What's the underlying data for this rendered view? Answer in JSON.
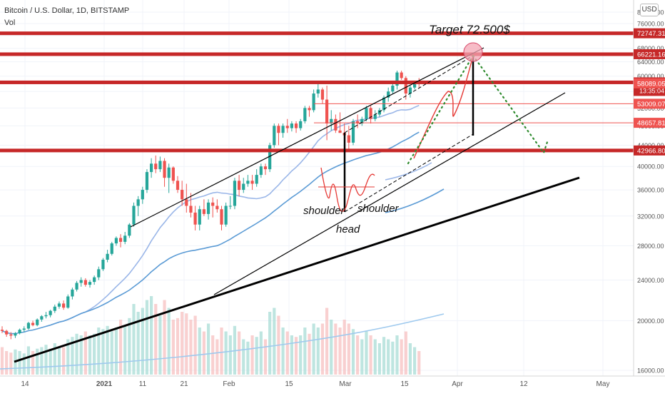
{
  "header": {
    "symbol": "Bitcoin / U.S. Dollar, 1D, BITSTAMP",
    "indicator": "Vol",
    "currency_button": "USD"
  },
  "annotations": {
    "target": "Target 72.500$",
    "left_shoulder": "shoulder",
    "right_shoulder": "shoulder",
    "head": "head"
  },
  "colors": {
    "up": "#26a69a",
    "down": "#ef5350",
    "level": "#c62828",
    "ma_short": "#9ab6e8",
    "ma_mid": "#5b9bd5",
    "ma_long": "#9ec9ee",
    "projection": "#2e8b2e",
    "target_circle": "#f4a6b4"
  },
  "chart_data": {
    "type": "candlestick",
    "symbol": "Bitcoin / U.S. Dollar",
    "interval": "1D",
    "exchange": "BITSTAMP",
    "y_scale": "log",
    "ylim": [
      16000,
      84000
    ],
    "x_ticks": [
      "14",
      "2021",
      "11",
      "21",
      "Feb",
      "15",
      "Mar",
      "15",
      "Apr",
      "12",
      "May"
    ],
    "y_ticks": [
      16000,
      20000,
      24000,
      28000,
      32000,
      36000,
      40000,
      44000,
      48000,
      52000,
      56000,
      60000,
      64000,
      68000,
      72000,
      76000,
      80000
    ],
    "price_labels": [
      {
        "text": "72747.31",
        "value": 72747.31
      },
      {
        "text": "66221.16",
        "value": 66221.16
      },
      {
        "text": "58347.97",
        "value": 58347.97,
        "sub": "13:35:04"
      },
      {
        "text": "58089.05",
        "value": 58089.05
      },
      {
        "text": "53009.07",
        "value": 53009.07
      },
      {
        "text": "48657.81",
        "value": 48657.81
      },
      {
        "text": "42966.80",
        "value": 42966.8
      }
    ],
    "horizontal_levels": [
      72747.31,
      66221.16,
      58347.97,
      42966.8
    ],
    "thin_levels": [
      53009.07,
      48657.81
    ],
    "target": 72500,
    "pattern": "head and shoulders",
    "ohlc": [
      [
        0,
        19200,
        19500,
        18900,
        19100
      ],
      [
        1,
        19100,
        19200,
        18600,
        18800
      ],
      [
        2,
        18800,
        19000,
        18400,
        18700
      ],
      [
        3,
        18700,
        19000,
        18500,
        18900
      ],
      [
        4,
        18900,
        19300,
        18800,
        19200
      ],
      [
        5,
        19200,
        19500,
        19000,
        19300
      ],
      [
        6,
        19300,
        19900,
        19200,
        19800
      ],
      [
        7,
        19800,
        20000,
        19500,
        19600
      ],
      [
        8,
        19600,
        20200,
        19500,
        20100
      ],
      [
        9,
        20100,
        20500,
        19900,
        20400
      ],
      [
        10,
        20400,
        20800,
        20200,
        20500
      ],
      [
        11,
        20500,
        21000,
        20300,
        20900
      ],
      [
        12,
        20900,
        21500,
        20700,
        21300
      ],
      [
        13,
        21300,
        21800,
        21100,
        21600
      ],
      [
        14,
        21600,
        21900,
        21000,
        21200
      ],
      [
        15,
        21200,
        22500,
        21100,
        22300
      ],
      [
        16,
        22300,
        23200,
        22000,
        23000
      ],
      [
        17,
        23000,
        23900,
        22800,
        23700
      ],
      [
        18,
        23700,
        24300,
        23300,
        24000
      ],
      [
        19,
        24000,
        24200,
        23300,
        23500
      ],
      [
        20,
        23500,
        24000,
        23200,
        23800
      ],
      [
        21,
        23800,
        24500,
        23500,
        24300
      ],
      [
        22,
        24300,
        25500,
        24000,
        25200
      ],
      [
        23,
        25200,
        26500,
        25000,
        26300
      ],
      [
        24,
        26300,
        27500,
        26000,
        27000
      ],
      [
        25,
        27000,
        28500,
        26800,
        28300
      ],
      [
        26,
        28300,
        29200,
        28000,
        29000
      ],
      [
        27,
        29000,
        29500,
        27800,
        28500
      ],
      [
        28,
        28500,
        29800,
        28200,
        29300
      ],
      [
        29,
        29300,
        31000,
        29000,
        30800
      ],
      [
        30,
        30800,
        34000,
        30500,
        33500
      ],
      [
        31,
        33500,
        35000,
        32000,
        34500
      ],
      [
        32,
        34500,
        36500,
        33800,
        36000
      ],
      [
        33,
        36000,
        39500,
        35500,
        39000
      ],
      [
        34,
        39000,
        41500,
        38000,
        40500
      ],
      [
        35,
        40500,
        42000,
        38800,
        39500
      ],
      [
        36,
        39500,
        41800,
        39000,
        41000
      ],
      [
        37,
        41000,
        41500,
        36500,
        38000
      ],
      [
        38,
        38000,
        40500,
        35500,
        39800
      ],
      [
        39,
        39800,
        40000,
        37000,
        37500
      ],
      [
        40,
        37500,
        38300,
        35500,
        36000
      ],
      [
        41,
        36000,
        37500,
        33500,
        34500
      ],
      [
        42,
        34500,
        37000,
        32500,
        33500
      ],
      [
        43,
        33500,
        35500,
        31800,
        32500
      ],
      [
        44,
        32500,
        33500,
        30000,
        30800
      ],
      [
        45,
        30800,
        33500,
        30000,
        33000
      ],
      [
        46,
        33000,
        34500,
        32000,
        32300
      ],
      [
        47,
        32300,
        34500,
        31500,
        34000
      ],
      [
        48,
        34000,
        34800,
        31800,
        33500
      ],
      [
        49,
        33500,
        34500,
        32500,
        33000
      ],
      [
        50,
        33000,
        33500,
        30000,
        30800
      ],
      [
        51,
        30800,
        34000,
        30500,
        33500
      ],
      [
        52,
        33500,
        35000,
        33000,
        33500
      ],
      [
        53,
        33500,
        38000,
        33000,
        37500
      ],
      [
        54,
        37500,
        38500,
        35000,
        36000
      ],
      [
        55,
        36000,
        38000,
        35500,
        37000
      ],
      [
        56,
        37000,
        38500,
        36500,
        37500
      ],
      [
        57,
        37500,
        38500,
        36000,
        37000
      ],
      [
        58,
        37000,
        39500,
        36500,
        38500
      ],
      [
        59,
        38500,
        40500,
        38000,
        40000
      ],
      [
        60,
        40000,
        40500,
        38500,
        39500
      ],
      [
        61,
        39500,
        44500,
        39000,
        44000
      ],
      [
        62,
        44000,
        48500,
        43500,
        48000
      ],
      [
        63,
        48000,
        48500,
        44000,
        46500
      ],
      [
        64,
        46500,
        48500,
        45500,
        48000
      ],
      [
        65,
        48000,
        49500,
        46500,
        47500
      ],
      [
        66,
        47500,
        49000,
        46800,
        48500
      ],
      [
        67,
        48500,
        49000,
        46500,
        47500
      ],
      [
        68,
        47500,
        49500,
        47000,
        49000
      ],
      [
        69,
        49000,
        52500,
        48500,
        52000
      ],
      [
        70,
        52000,
        52500,
        50000,
        51500
      ],
      [
        71,
        51500,
        56500,
        51000,
        55500
      ],
      [
        72,
        55500,
        58000,
        54500,
        56500
      ],
      [
        73,
        56500,
        57000,
        53000,
        54000
      ],
      [
        74,
        54000,
        57500,
        45000,
        48500
      ],
      [
        75,
        48500,
        51500,
        47000,
        49500
      ],
      [
        76,
        49500,
        50500,
        46500,
        47000
      ],
      [
        77,
        47000,
        51000,
        46500,
        46500
      ],
      [
        78,
        46500,
        48500,
        44500,
        46000
      ],
      [
        79,
        46000,
        48000,
        43000,
        44500
      ],
      [
        80,
        44500,
        49500,
        44000,
        49000
      ],
      [
        81,
        49000,
        50500,
        47500,
        48500
      ],
      [
        82,
        48500,
        50000,
        48000,
        49500
      ],
      [
        83,
        49500,
        52500,
        49000,
        52000
      ],
      [
        84,
        52000,
        52500,
        48500,
        49500
      ],
      [
        85,
        49500,
        51500,
        49000,
        50500
      ],
      [
        86,
        50500,
        52000,
        50000,
        51500
      ],
      [
        87,
        51500,
        55000,
        51000,
        54500
      ],
      [
        88,
        54500,
        57000,
        53500,
        56000
      ],
      [
        89,
        56000,
        58500,
        55500,
        57500
      ],
      [
        90,
        57500,
        61500,
        56500,
        61000
      ],
      [
        91,
        61000,
        61500,
        59000,
        59500
      ],
      [
        92,
        59500,
        60000,
        54000,
        55500
      ],
      [
        93,
        55500,
        57500,
        54500,
        57000
      ],
      [
        94,
        57000,
        58500,
        56500,
        58500
      ],
      [
        95,
        58500,
        59500,
        57000,
        58350
      ]
    ],
    "volume_relative": [
      0.35,
      0.3,
      0.28,
      0.32,
      0.3,
      0.27,
      0.36,
      0.3,
      0.33,
      0.35,
      0.38,
      0.33,
      0.4,
      0.36,
      0.35,
      0.45,
      0.48,
      0.52,
      0.5,
      0.55,
      0.5,
      0.52,
      0.6,
      0.58,
      0.62,
      0.55,
      0.6,
      0.7,
      0.62,
      0.72,
      0.9,
      0.8,
      0.85,
      0.95,
      1.0,
      0.9,
      0.75,
      0.95,
      0.85,
      0.7,
      0.72,
      0.8,
      0.78,
      0.7,
      0.75,
      0.6,
      0.55,
      0.65,
      0.5,
      0.45,
      0.6,
      0.55,
      0.5,
      0.62,
      0.55,
      0.45,
      0.42,
      0.5,
      0.48,
      0.55,
      0.45,
      0.8,
      0.85,
      0.75,
      0.6,
      0.55,
      0.5,
      0.48,
      0.5,
      0.6,
      0.52,
      0.65,
      0.6,
      0.65,
      0.85,
      0.7,
      0.65,
      0.6,
      0.7,
      0.65,
      0.58,
      0.5,
      0.45,
      0.55,
      0.5,
      0.45,
      0.4,
      0.48,
      0.45,
      0.42,
      0.5,
      0.45,
      0.55,
      0.4,
      0.35,
      0.3
    ]
  }
}
